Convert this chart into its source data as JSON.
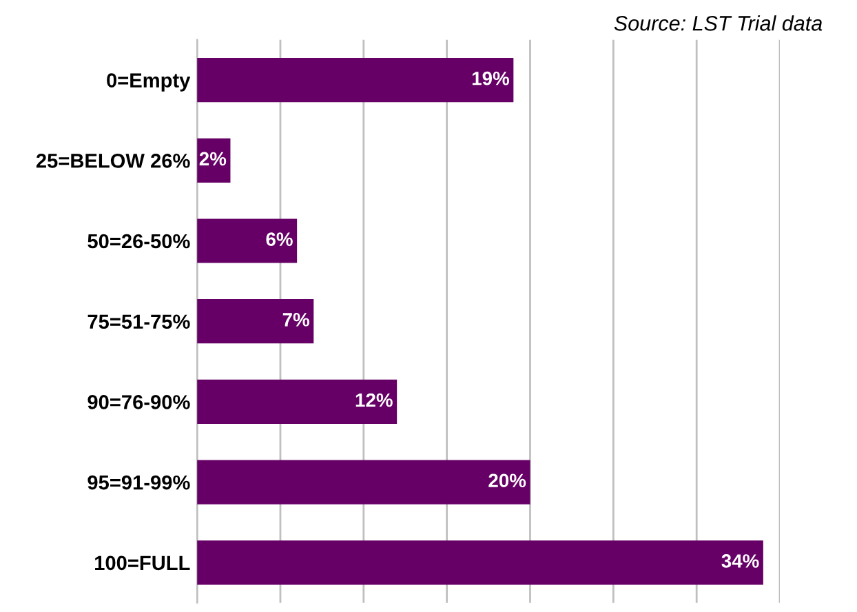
{
  "chart_data": {
    "type": "bar",
    "orientation": "horizontal",
    "categories": [
      "0=Empty",
      "25=BELOW 26%",
      "50=26-50%",
      "75=51-75%",
      "90=76-90%",
      "95=91-99%",
      "100=FULL"
    ],
    "values": [
      19,
      2,
      6,
      7,
      12,
      20,
      34
    ],
    "value_labels": [
      "19%",
      "2%",
      "6%",
      "7%",
      "12%",
      "20%",
      "34%"
    ],
    "color": "#660066",
    "xlim": [
      0,
      35
    ],
    "xticks": [
      {
        "value": 0,
        "label": null
      },
      {
        "value": 5,
        "label": null
      },
      {
        "value": 10,
        "label": null
      },
      {
        "value": 15,
        "label": null
      },
      {
        "value": 20,
        "label": null
      },
      {
        "value": 25,
        "label": null
      },
      {
        "value": 30,
        "label": null
      },
      {
        "value": 35,
        "label": null
      }
    ],
    "grid": "x",
    "tick_labels": "y",
    "annotations": [
      "Source: LST Trial data"
    ]
  }
}
